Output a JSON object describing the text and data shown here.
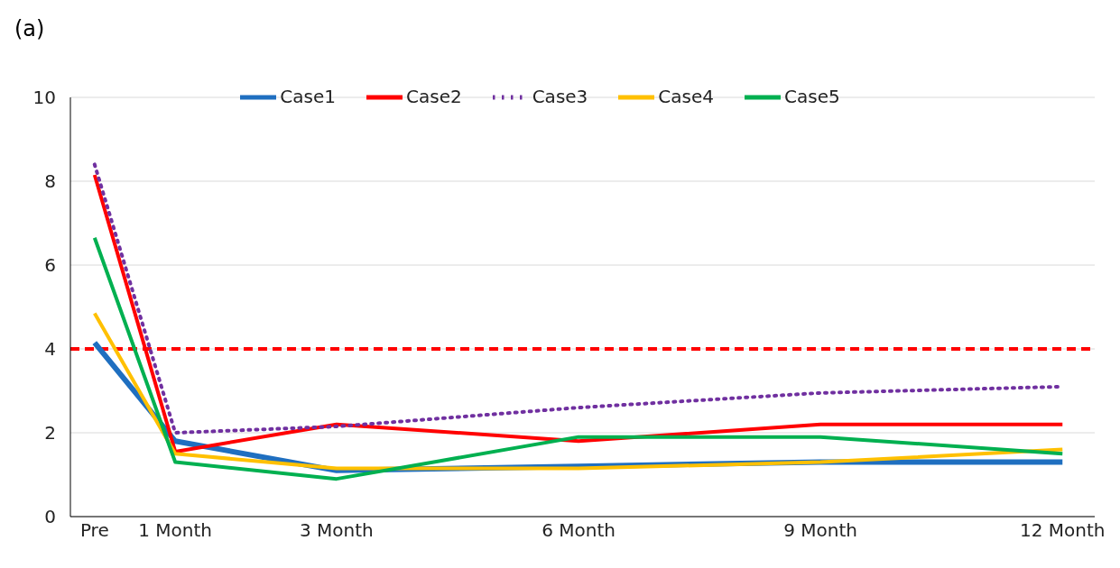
{
  "chart_data": {
    "type": "line",
    "title": "(a)",
    "x": [
      0,
      1,
      3,
      6,
      9,
      12
    ],
    "xlim": [
      -0.3,
      12.4
    ],
    "xticks": [
      {
        "value": 0,
        "label": "Pre"
      },
      {
        "value": 1,
        "label": "1 Month"
      },
      {
        "value": 3,
        "label": "3 Month"
      },
      {
        "value": 6,
        "label": "6 Month"
      },
      {
        "value": 9,
        "label": "9 Month"
      },
      {
        "value": 12,
        "label": "12 Month"
      }
    ],
    "ylim": [
      0,
      10
    ],
    "yticks": [
      0,
      2,
      4,
      6,
      8,
      10
    ],
    "grid": "y",
    "legend": "top",
    "marker": "none",
    "series": [
      {
        "name": "Case1",
        "color": "#1f6fc0",
        "values": [
          4.15,
          1.8,
          1.1,
          1.2,
          1.3,
          1.3
        ]
      },
      {
        "name": "Case2",
        "color": "#ff0000",
        "values": [
          8.15,
          1.55,
          2.2,
          1.8,
          2.2,
          2.2
        ]
      },
      {
        "name": "Case3",
        "color": "#7030a0",
        "line_style": "dotted",
        "values": [
          8.4,
          2.0,
          2.15,
          2.6,
          2.95,
          3.1
        ]
      },
      {
        "name": "Case4",
        "color": "#ffc000",
        "values": [
          4.85,
          1.5,
          1.15,
          1.15,
          1.3,
          1.6
        ]
      },
      {
        "name": "Case5",
        "color": "#00b050",
        "values": [
          6.65,
          1.3,
          0.9,
          1.9,
          1.9,
          1.5
        ]
      }
    ],
    "ref_lines": [
      {
        "axis": "y",
        "value": 4,
        "color": "#ff0000",
        "line_style": "dashed"
      }
    ]
  }
}
